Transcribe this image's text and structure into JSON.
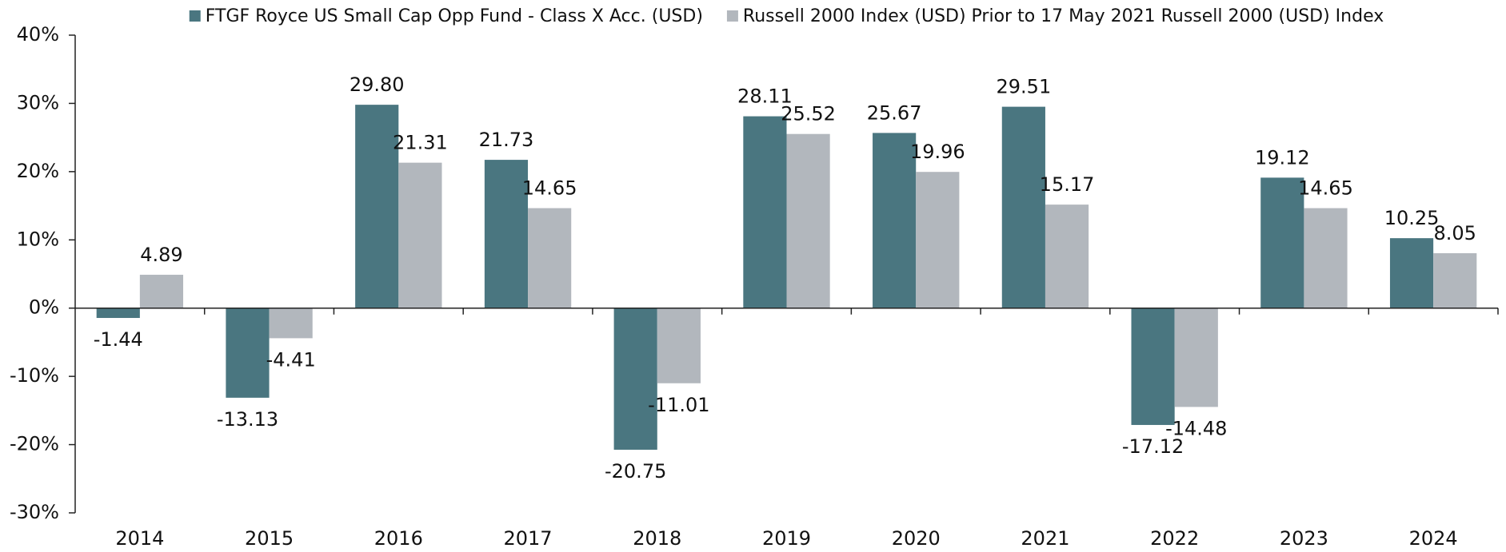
{
  "chart_data": {
    "type": "bar",
    "categories": [
      "2014",
      "2015",
      "2016",
      "2017",
      "2018",
      "2019",
      "2020",
      "2021",
      "2022",
      "2023",
      "2024"
    ],
    "series": [
      {
        "name": "FTGF Royce US Small Cap Opp Fund - Class X Acc. (USD)",
        "color": "#4a7680",
        "values": [
          -1.44,
          -13.13,
          29.8,
          21.73,
          -20.75,
          28.11,
          25.67,
          29.51,
          -17.12,
          19.12,
          10.25
        ],
        "value_labels": [
          "-1.44",
          "-13.13",
          "29.80",
          "21.73",
          "-20.75",
          "28.11",
          "25.67",
          "29.51",
          "-17.12",
          "19.12",
          "10.25"
        ]
      },
      {
        "name": "Russell 2000 Index (USD) Prior to 17 May 2021 Russell 2000 (USD) Index",
        "color": "#b2b7bd",
        "values": [
          4.89,
          -4.41,
          21.31,
          14.65,
          -11.01,
          25.52,
          19.96,
          15.17,
          -14.48,
          14.65,
          8.05
        ],
        "value_labels": [
          "4.89",
          "-4.41",
          "21.31",
          "14.65",
          "-11.01",
          "25.52",
          "19.96",
          "15.17",
          "-14.48",
          "14.65",
          "8.05"
        ]
      }
    ],
    "ylim": [
      -30,
      40
    ],
    "yticks": [
      {
        "value": -30,
        "label": "-30%"
      },
      {
        "value": -20,
        "label": "-20%"
      },
      {
        "value": -10,
        "label": "-10%"
      },
      {
        "value": 0,
        "label": "0%"
      },
      {
        "value": 10,
        "label": "10%"
      },
      {
        "value": 20,
        "label": "20%"
      },
      {
        "value": 30,
        "label": "30%"
      },
      {
        "value": 40,
        "label": "40%"
      }
    ],
    "legend": "top"
  }
}
